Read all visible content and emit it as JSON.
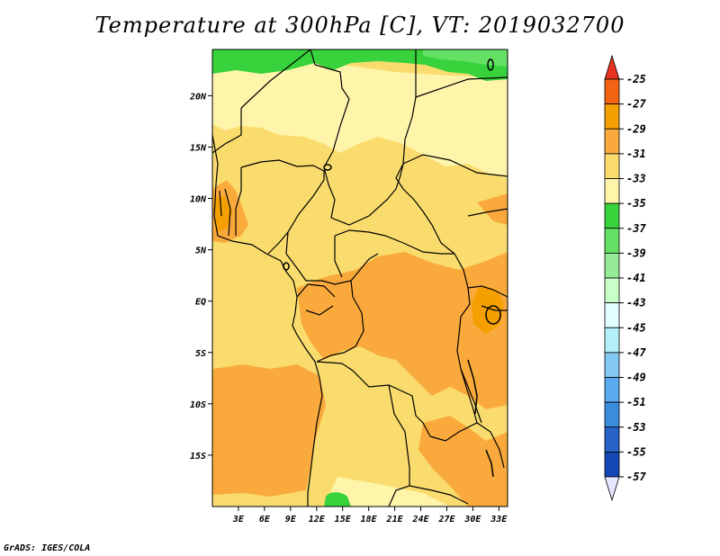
{
  "title": "Temperature at 300hPa [C], VT: 2019032700",
  "credit": "GrADS: IGES/COLA",
  "map": {
    "lon_range": [
      0,
      34
    ],
    "lat_range": [
      -20,
      24.5
    ],
    "x_ticks": [
      {
        "lon": 3,
        "label": "3E"
      },
      {
        "lon": 6,
        "label": "6E"
      },
      {
        "lon": 9,
        "label": "9E"
      },
      {
        "lon": 12,
        "label": "12E"
      },
      {
        "lon": 15,
        "label": "15E"
      },
      {
        "lon": 18,
        "label": "18E"
      },
      {
        "lon": 21,
        "label": "21E"
      },
      {
        "lon": 24,
        "label": "24E"
      },
      {
        "lon": 27,
        "label": "27E"
      },
      {
        "lon": 30,
        "label": "30E"
      },
      {
        "lon": 33,
        "label": "33E"
      }
    ],
    "y_ticks": [
      {
        "lat": 20,
        "label": "20N"
      },
      {
        "lat": 15,
        "label": "15N"
      },
      {
        "lat": 10,
        "label": "10N"
      },
      {
        "lat": 5,
        "label": "5N"
      },
      {
        "lat": 0,
        "label": "EQ"
      },
      {
        "lat": -5,
        "label": "5S"
      },
      {
        "lat": -10,
        "label": "10S"
      },
      {
        "lat": -15,
        "label": "15S"
      }
    ],
    "background_color": "#fadc6e"
  },
  "legend": {
    "levels": [
      {
        "label": "-25",
        "color": "#e6321e"
      },
      {
        "label": "-27",
        "color": "#f06414"
      },
      {
        "label": "-29",
        "color": "#f5a000"
      },
      {
        "label": "-31",
        "color": "#faaa3c"
      },
      {
        "label": "-33",
        "color": "#fadc6e"
      },
      {
        "label": "-35",
        "color": "#fff5aa"
      },
      {
        "label": "-37",
        "color": "#37d23c"
      },
      {
        "label": "-39",
        "color": "#64e164"
      },
      {
        "label": "-41",
        "color": "#96eb96"
      },
      {
        "label": "-43",
        "color": "#c8ffc8"
      },
      {
        "label": "-45",
        "color": "#e1ffff"
      },
      {
        "label": "-47",
        "color": "#b4f0fa"
      },
      {
        "label": "-49",
        "color": "#82c8f0"
      },
      {
        "label": "-51",
        "color": "#5aaaf0"
      },
      {
        "label": "-53",
        "color": "#3c8cdc"
      },
      {
        "label": "-55",
        "color": "#2864c8"
      },
      {
        "label": "-57",
        "color": "#1446b4"
      }
    ],
    "top_color": "#e6321e",
    "bottom_color": "#e6e6ff",
    "bottom_dark_color": "#0a1e78"
  }
}
